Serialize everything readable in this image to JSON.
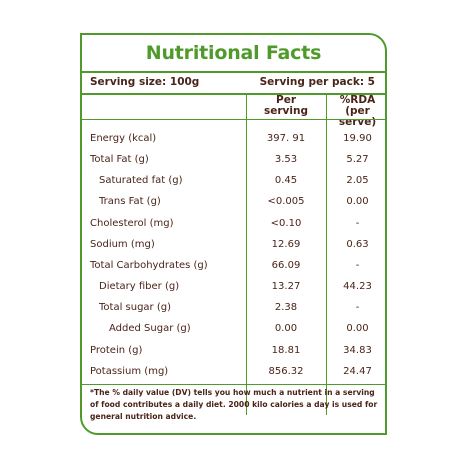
{
  "title": "Nutritional Facts",
  "serving_size": "Serving size: 100g",
  "serving_per_pack": "Serving per pack: 5",
  "col_headers": {
    "per": "Per",
    "serving": "serving",
    "rda": "%RDA",
    "per_serve": "(per serve)"
  },
  "rows": [
    {
      "name": "Energy (kcal)",
      "per_serving": "397. 91",
      "rda": "19.90",
      "indent": 0
    },
    {
      "name": "Total Fat (g)",
      "per_serving": "3.53",
      "rda": "5.27",
      "indent": 0
    },
    {
      "name": "Saturated fat (g)",
      "per_serving": "0.45",
      "rda": "2.05",
      "indent": 1
    },
    {
      "name": "Trans Fat (g)",
      "per_serving": "<0.005",
      "rda": "0.00",
      "indent": 1
    },
    {
      "name": "Cholesterol (mg)",
      "per_serving": "<0.10",
      "rda": "-",
      "indent": 0
    },
    {
      "name": "Sodium (mg)",
      "per_serving": "12.69",
      "rda": "0.63",
      "indent": 0
    },
    {
      "name": "Total Carbohydrates  (g)",
      "per_serving": "66.09",
      "rda": "-",
      "indent": 0
    },
    {
      "name": "Dietary fiber (g)",
      "per_serving": "13.27",
      "rda": "44.23",
      "indent": 1
    },
    {
      "name": "Total sugar (g)",
      "per_serving": "2.38",
      "rda": "-",
      "indent": 1
    },
    {
      "name": "Added Sugar (g)",
      "per_serving": "0.00",
      "rda": "0.00",
      "indent": 2
    },
    {
      "name": "Protein (g)",
      "per_serving": "18.81",
      "rda": "34.83",
      "indent": 0
    },
    {
      "name": "Potassium (mg)",
      "per_serving": "856.32",
      "rda": "24.47",
      "indent": 0
    }
  ],
  "footnote_lines": [
    "*The % daily value (DV) tells you how much a nutrient in a serving",
    "of food contributes a daily diet. 2000 kilo calories a day is used for",
    "general nutrition advice."
  ],
  "colors": {
    "accent": "#4f9a2a",
    "text": "#4a2418"
  }
}
